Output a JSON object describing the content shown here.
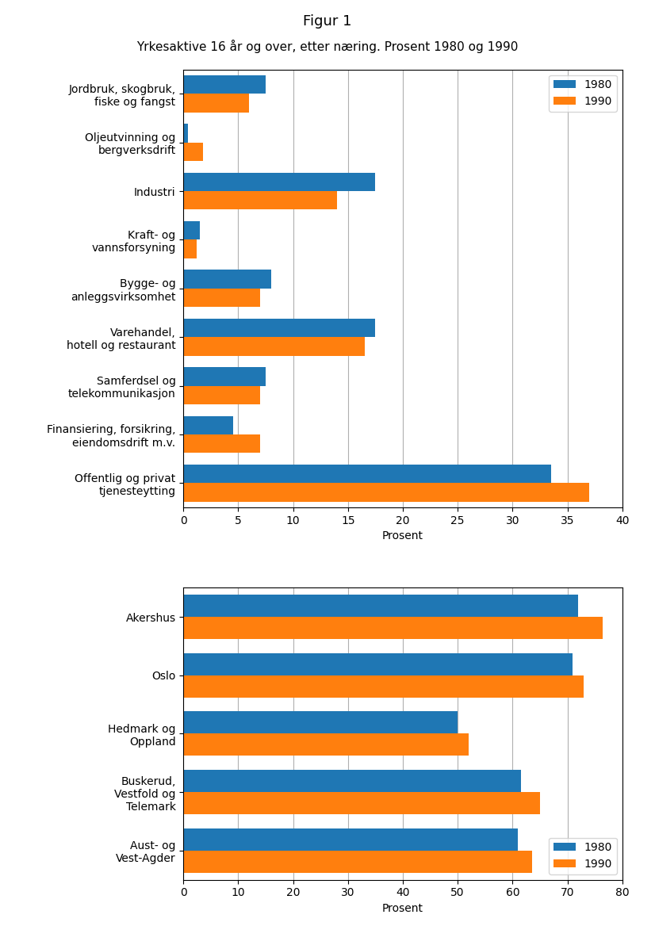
{
  "title": "Figur 1",
  "subtitle": "Yrkesaktive 16 år og over, etter næring. Prosent 1980 og 1990",
  "chart_data": [
    {
      "type": "bar",
      "orientation": "horizontal",
      "categories": [
        "Jordbruk, skogbruk,\nfiske og fangst",
        "Oljeutvinning og\nbergverksdrift",
        "Industri",
        "Kraft- og\nvannsforsyning",
        "Bygge- og\nanleggsvirksomhet",
        "Varehandel,\nhotell og restaurant",
        "Samferdsel og\ntelekommunikasjon",
        "Finansiering, forsikring,\neiendomsdrift m.v.",
        "Offentlig og privat\ntjenesteytting"
      ],
      "series": [
        {
          "name": "1980",
          "values": [
            7.5,
            0.4,
            17.5,
            1.5,
            8.0,
            17.5,
            7.5,
            4.5,
            33.5
          ]
        },
        {
          "name": "1990",
          "values": [
            6.0,
            1.8,
            14.0,
            1.2,
            7.0,
            16.5,
            7.0,
            7.0,
            37.0
          ]
        }
      ],
      "xlabel": "Prosent",
      "xlim": [
        0,
        40
      ],
      "xticks": [
        0,
        5,
        10,
        15,
        20,
        25,
        30,
        35,
        40
      ],
      "grid": true,
      "legend": "upper right"
    },
    {
      "type": "bar",
      "orientation": "horizontal",
      "categories": [
        "Akershus",
        "Oslo",
        "Hedmark og\nOppland",
        "Buskerud,\nVestfold og\nTelemark",
        "Aust- og\nVest-Agder"
      ],
      "series": [
        {
          "name": "1980",
          "values": [
            72.0,
            71.0,
            50.0,
            61.5,
            61.0
          ]
        },
        {
          "name": "1990",
          "values": [
            76.5,
            73.0,
            52.0,
            65.0,
            63.5
          ]
        }
      ],
      "xlabel": "Prosent",
      "xlim": [
        0,
        80
      ],
      "xticks": [
        0,
        10,
        20,
        30,
        40,
        50,
        60,
        70,
        80
      ],
      "grid": true,
      "legend": "lower right"
    }
  ]
}
